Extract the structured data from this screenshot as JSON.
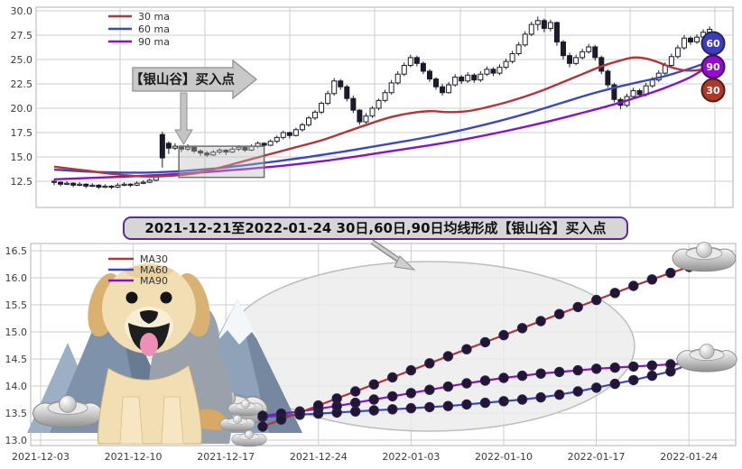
{
  "figure": {
    "background": "#ffffff",
    "grid_color": "#cccccc",
    "spine_color": "#b0b0b0"
  },
  "decorations": {
    "items": [
      "snow-mountains",
      "golden-retriever-dog",
      "silver-ingots"
    ],
    "mountain_color": "#8096af",
    "dog_color": "#f2deb3",
    "ingot_color": "#c9c9c9"
  },
  "chart_data": [
    {
      "id": "main",
      "type": "candlestick",
      "title": "",
      "ylim": [
        9.8,
        30.4
      ],
      "yticks": [
        "30.0",
        "27.5",
        "25.0",
        "22.5",
        "20.0",
        "17.5",
        "15.0",
        "12.5"
      ],
      "ytick_values": [
        30.0,
        27.5,
        25.0,
        22.5,
        20.0,
        17.5,
        15.0,
        12.5
      ],
      "legend_position": "top-left",
      "candle_up_fill": "#ffffff",
      "candle_down_fill": "#1b1b2b",
      "candle_edge": "#1b1b2b",
      "annotation": {
        "text": "【银山谷】买入点",
        "fill": "#c9c9c9",
        "edge": "#8f8f8f"
      },
      "highlight_box": {
        "i_start": 19.6,
        "i_end": 33.0,
        "v_low": 12.9,
        "v_high": 16.1
      },
      "badges": [
        {
          "label": "60",
          "color": "#3d3cbe",
          "edge": "#26265e"
        },
        {
          "label": "90",
          "color": "#9709cf",
          "edge": "#3d1060"
        },
        {
          "label": "30",
          "color": "#ac3a28",
          "edge": "#521b12"
        }
      ],
      "series": [
        {
          "name": "60 ma",
          "color": "#3b49bd",
          "points": [
            [
              0,
              13.7
            ],
            [
              5,
              13.5
            ],
            [
              10,
              13.4
            ],
            [
              15,
              13.4
            ],
            [
              20,
              13.55
            ],
            [
              25,
              13.8
            ],
            [
              30,
              14.15
            ],
            [
              35,
              14.55
            ],
            [
              40,
              15.0
            ],
            [
              45,
              15.5
            ],
            [
              50,
              16.05
            ],
            [
              55,
              16.6
            ],
            [
              60,
              17.2
            ],
            [
              65,
              17.9
            ],
            [
              70,
              18.7
            ],
            [
              75,
              19.6
            ],
            [
              80,
              20.6
            ],
            [
              84,
              21.4
            ],
            [
              88,
              22.1
            ],
            [
              92,
              22.7
            ],
            [
              96,
              23.3
            ],
            [
              100,
              24.1
            ],
            [
              103,
              24.8
            ]
          ]
        },
        {
          "name": "90 ma",
          "color": "#8812cc",
          "points": [
            [
              0,
              12.7
            ],
            [
              6,
              12.85
            ],
            [
              12,
              13.0
            ],
            [
              18,
              13.2
            ],
            [
              24,
              13.45
            ],
            [
              30,
              13.75
            ],
            [
              36,
              14.1
            ],
            [
              42,
              14.55
            ],
            [
              48,
              15.1
            ],
            [
              54,
              15.7
            ],
            [
              60,
              16.3
            ],
            [
              66,
              17.0
            ],
            [
              72,
              17.8
            ],
            [
              78,
              18.7
            ],
            [
              84,
              19.7
            ],
            [
              88,
              20.4
            ],
            [
              92,
              21.2
            ],
            [
              96,
              22.1
            ],
            [
              100,
              23.2
            ],
            [
              103,
              24.4
            ]
          ]
        },
        {
          "name": "30 ma",
          "color": "#b1353a",
          "points": [
            [
              0,
              14.0
            ],
            [
              5,
              13.6
            ],
            [
              10,
              13.2
            ],
            [
              14,
              13.0
            ],
            [
              18,
              13.05
            ],
            [
              22,
              13.3
            ],
            [
              26,
              13.9
            ],
            [
              30,
              14.6
            ],
            [
              34,
              15.3
            ],
            [
              38,
              16.0
            ],
            [
              42,
              16.7
            ],
            [
              46,
              17.6
            ],
            [
              50,
              18.5
            ],
            [
              53,
              19.1
            ],
            [
              56,
              19.5
            ],
            [
              59,
              19.7
            ],
            [
              62,
              19.6
            ],
            [
              65,
              19.7
            ],
            [
              68,
              20.1
            ],
            [
              71,
              20.6
            ],
            [
              74,
              21.2
            ],
            [
              77,
              21.9
            ],
            [
              80,
              22.7
            ],
            [
              83,
              23.5
            ],
            [
              86,
              24.3
            ],
            [
              89,
              24.9
            ],
            [
              91,
              25.2
            ],
            [
              93,
              25.1
            ],
            [
              95,
              24.7
            ],
            [
              97,
              24.2
            ],
            [
              99,
              23.9
            ],
            [
              101,
              23.9
            ],
            [
              103,
              24.2
            ]
          ]
        }
      ],
      "legend_order": [
        "30 ma",
        "60 ma",
        "90 ma"
      ],
      "candles": [
        [
          12.5,
          12.7,
          12.1,
          12.4
        ],
        [
          12.4,
          12.5,
          12.0,
          12.2
        ],
        [
          12.2,
          12.5,
          12.1,
          12.3
        ],
        [
          12.3,
          12.4,
          11.9,
          12.1
        ],
        [
          12.1,
          12.4,
          12.0,
          12.2
        ],
        [
          12.2,
          12.3,
          11.8,
          12.0
        ],
        [
          12.0,
          12.3,
          11.9,
          12.1
        ],
        [
          12.1,
          12.2,
          11.7,
          11.9
        ],
        [
          11.9,
          12.2,
          11.8,
          12.0
        ],
        [
          12.0,
          12.1,
          11.7,
          11.9
        ],
        [
          11.9,
          12.3,
          11.8,
          12.1
        ],
        [
          12.1,
          12.4,
          12.0,
          12.2
        ],
        [
          12.2,
          12.3,
          11.9,
          12.1
        ],
        [
          12.1,
          12.5,
          12.0,
          12.3
        ],
        [
          12.3,
          12.6,
          12.2,
          12.4
        ],
        [
          12.4,
          12.8,
          12.3,
          12.6
        ],
        [
          12.6,
          13.2,
          12.5,
          13.0
        ],
        [
          17.3,
          17.6,
          13.9,
          14.9
        ],
        [
          16.4,
          16.6,
          15.3,
          15.9
        ],
        [
          15.9,
          16.4,
          15.7,
          16.1
        ],
        [
          16.1,
          16.2,
          15.5,
          15.8
        ],
        [
          15.8,
          16.3,
          15.6,
          16.0
        ],
        [
          16.0,
          16.1,
          15.4,
          15.6
        ],
        [
          15.6,
          15.8,
          15.1,
          15.4
        ],
        [
          15.4,
          15.6,
          15.0,
          15.2
        ],
        [
          15.2,
          15.7,
          15.1,
          15.5
        ],
        [
          15.5,
          15.9,
          15.3,
          15.7
        ],
        [
          15.7,
          15.8,
          15.2,
          15.5
        ],
        [
          15.5,
          16.0,
          15.4,
          15.8
        ],
        [
          15.8,
          16.2,
          15.6,
          16.0
        ],
        [
          16.0,
          16.1,
          15.5,
          15.7
        ],
        [
          15.7,
          16.3,
          15.6,
          16.1
        ],
        [
          16.1,
          16.6,
          15.9,
          16.4
        ],
        [
          16.4,
          16.5,
          16.0,
          16.2
        ],
        [
          16.2,
          16.8,
          16.1,
          16.6
        ],
        [
          16.6,
          17.2,
          16.4,
          17.0
        ],
        [
          17.0,
          17.7,
          16.8,
          17.5
        ],
        [
          17.5,
          17.6,
          16.9,
          17.2
        ],
        [
          17.2,
          18.0,
          17.1,
          17.8
        ],
        [
          17.8,
          18.5,
          17.6,
          18.3
        ],
        [
          18.3,
          19.2,
          18.1,
          19.0
        ],
        [
          19.0,
          19.8,
          18.8,
          19.6
        ],
        [
          19.6,
          20.7,
          19.4,
          20.5
        ],
        [
          20.5,
          21.8,
          20.3,
          21.5
        ],
        [
          21.5,
          23.1,
          21.3,
          22.8
        ],
        [
          22.8,
          23.0,
          21.9,
          22.2
        ],
        [
          22.2,
          22.4,
          20.7,
          21.0
        ],
        [
          21.0,
          21.3,
          19.5,
          19.8
        ],
        [
          19.8,
          19.9,
          18.3,
          18.6
        ],
        [
          18.6,
          19.5,
          18.4,
          19.2
        ],
        [
          19.2,
          20.2,
          19.0,
          20.0
        ],
        [
          20.0,
          21.0,
          19.8,
          20.8
        ],
        [
          20.8,
          21.9,
          20.6,
          21.6
        ],
        [
          21.6,
          22.9,
          21.4,
          22.6
        ],
        [
          22.6,
          23.8,
          22.4,
          23.5
        ],
        [
          23.5,
          24.7,
          23.3,
          24.4
        ],
        [
          24.4,
          25.5,
          24.2,
          25.2
        ],
        [
          25.2,
          25.4,
          24.3,
          24.6
        ],
        [
          24.6,
          24.8,
          23.5,
          23.8
        ],
        [
          23.8,
          24.0,
          22.7,
          23.0
        ],
        [
          23.0,
          23.2,
          21.9,
          22.2
        ],
        [
          22.2,
          22.5,
          21.3,
          21.6
        ],
        [
          21.6,
          22.7,
          21.5,
          22.4
        ],
        [
          22.4,
          23.5,
          22.2,
          23.2
        ],
        [
          23.2,
          23.4,
          22.5,
          22.8
        ],
        [
          22.8,
          23.7,
          22.6,
          23.4
        ],
        [
          23.4,
          23.6,
          22.6,
          22.9
        ],
        [
          22.9,
          23.8,
          22.7,
          23.5
        ],
        [
          23.5,
          24.3,
          23.3,
          24.0
        ],
        [
          24.0,
          24.2,
          23.3,
          23.6
        ],
        [
          23.6,
          24.5,
          23.4,
          24.2
        ],
        [
          24.2,
          25.1,
          24.0,
          24.8
        ],
        [
          24.8,
          25.9,
          24.6,
          25.6
        ],
        [
          25.6,
          26.8,
          25.4,
          26.5
        ],
        [
          26.5,
          27.9,
          26.3,
          27.6
        ],
        [
          27.6,
          28.9,
          27.4,
          28.6
        ],
        [
          28.6,
          29.4,
          28.0,
          29.0
        ],
        [
          29.0,
          29.2,
          27.8,
          28.2
        ],
        [
          28.2,
          29.1,
          27.9,
          28.8
        ],
        [
          28.8,
          28.9,
          26.4,
          26.8
        ],
        [
          26.8,
          27.0,
          25.0,
          25.4
        ],
        [
          25.4,
          25.7,
          24.2,
          24.6
        ],
        [
          24.6,
          25.5,
          24.4,
          25.2
        ],
        [
          25.2,
          26.1,
          25.0,
          25.8
        ],
        [
          25.8,
          26.6,
          25.6,
          26.3
        ],
        [
          26.3,
          26.5,
          24.9,
          25.2
        ],
        [
          25.2,
          25.4,
          23.5,
          23.8
        ],
        [
          23.8,
          24.0,
          22.1,
          22.4
        ],
        [
          22.4,
          22.6,
          20.6,
          20.9
        ],
        [
          20.9,
          21.1,
          19.9,
          20.3
        ],
        [
          20.3,
          21.5,
          20.1,
          21.2
        ],
        [
          21.2,
          22.1,
          21.0,
          21.8
        ],
        [
          21.8,
          22.0,
          21.1,
          21.4
        ],
        [
          21.4,
          22.6,
          21.2,
          22.3
        ],
        [
          22.3,
          23.2,
          22.1,
          22.9
        ],
        [
          22.9,
          23.9,
          22.7,
          23.6
        ],
        [
          23.6,
          24.7,
          23.4,
          24.4
        ],
        [
          24.4,
          25.6,
          24.2,
          25.3
        ],
        [
          25.3,
          26.5,
          25.1,
          26.2
        ],
        [
          26.2,
          27.5,
          26.0,
          27.2
        ],
        [
          27.2,
          27.4,
          26.5,
          26.8
        ],
        [
          26.8,
          27.6,
          26.6,
          27.3
        ],
        [
          27.3,
          28.1,
          27.1,
          27.8
        ],
        [
          27.8,
          28.4,
          27.6,
          28.1
        ]
      ]
    },
    {
      "id": "detail",
      "type": "line",
      "title": "2021-12-21至2022-01-24 30日,60日,90日均线形成【银山谷】买入点",
      "ylim": [
        12.9,
        16.63
      ],
      "yticks": [
        "16.5",
        "16.0",
        "15.5",
        "15.0",
        "14.5",
        "14.0",
        "13.5",
        "13.0"
      ],
      "ytick_values": [
        16.5,
        16.0,
        15.5,
        15.0,
        14.5,
        14.0,
        13.5,
        13.0
      ],
      "xticks": [
        "2021-12-03",
        "2021-12-10",
        "2021-12-17",
        "2021-12-24",
        "2022-01-03",
        "2022-01-10",
        "2022-01-17",
        "2022-01-24"
      ],
      "marker_color": "#221636",
      "x": [
        "2021-12-21",
        "2021-12-22",
        "2021-12-23",
        "2021-12-24",
        "2021-12-27",
        "2021-12-28",
        "2021-12-29",
        "2021-12-30",
        "2021-12-31",
        "2022-01-04",
        "2022-01-05",
        "2022-01-06",
        "2022-01-07",
        "2022-01-10",
        "2022-01-11",
        "2022-01-12",
        "2022-01-13",
        "2022-01-14",
        "2022-01-17",
        "2022-01-18",
        "2022-01-19",
        "2022-01-20",
        "2022-01-21",
        "2022-01-24"
      ],
      "series": [
        {
          "name": "MA60",
          "color": "#3b49bd",
          "values": [
            13.43,
            13.45,
            13.47,
            13.49,
            13.51,
            13.53,
            13.55,
            13.57,
            13.59,
            13.61,
            13.63,
            13.66,
            13.69,
            13.72,
            13.75,
            13.79,
            13.84,
            13.9,
            13.97,
            14.04,
            14.11,
            14.19,
            14.27,
            14.4
          ]
        },
        {
          "name": "MA90",
          "color": "#8812cc",
          "values": [
            13.45,
            13.49,
            13.53,
            13.58,
            13.63,
            13.69,
            13.75,
            13.81,
            13.87,
            13.93,
            13.99,
            14.05,
            14.1,
            14.15,
            14.19,
            14.23,
            14.26,
            14.29,
            14.32,
            14.34,
            14.36,
            14.38,
            14.4,
            14.42
          ]
        },
        {
          "name": "MA30",
          "color": "#b1353a",
          "values": [
            13.25,
            13.38,
            13.51,
            13.64,
            13.77,
            13.9,
            14.03,
            14.16,
            14.29,
            14.42,
            14.55,
            14.68,
            14.81,
            14.94,
            15.07,
            15.2,
            15.33,
            15.46,
            15.59,
            15.72,
            15.85,
            15.97,
            16.09,
            16.2
          ]
        }
      ],
      "legend_order": [
        "MA30",
        "MA60",
        "MA90"
      ]
    }
  ]
}
